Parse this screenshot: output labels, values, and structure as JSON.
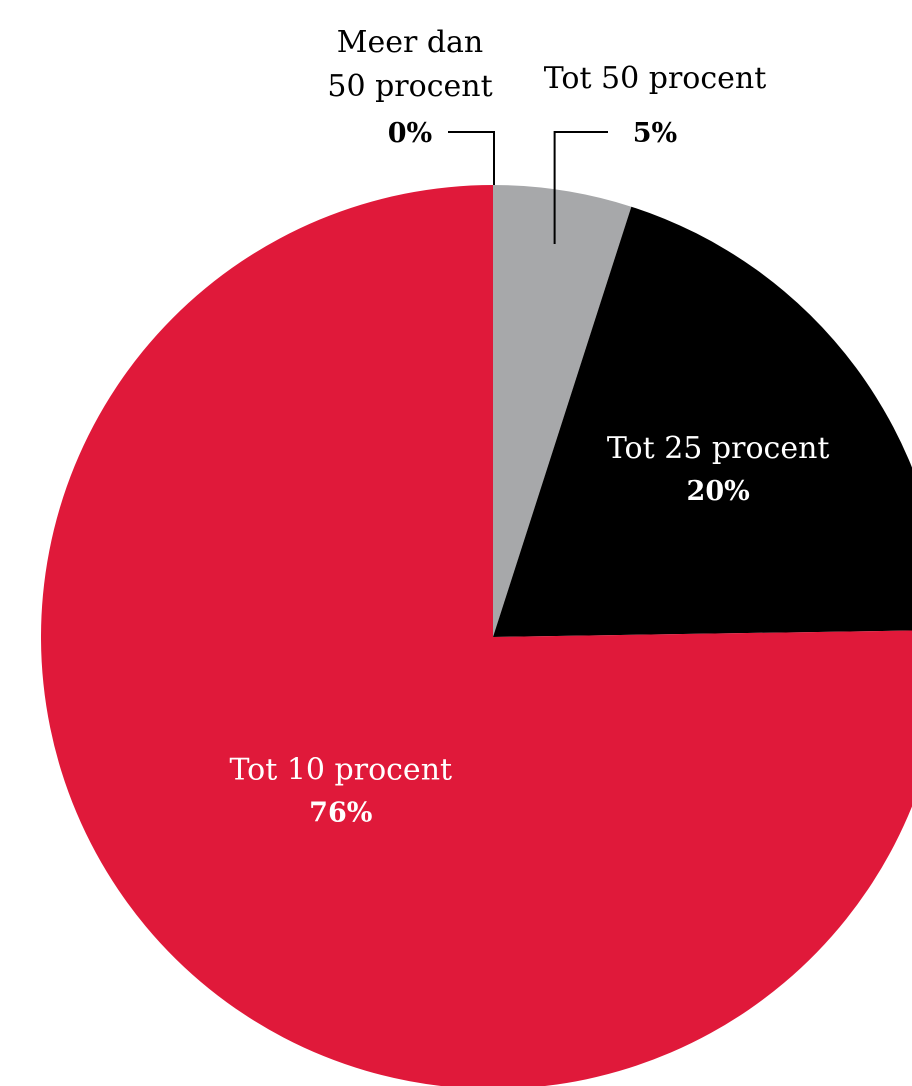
{
  "chart_data": {
    "type": "pie",
    "title": "",
    "start": "top",
    "direction": "clockwise",
    "slices": [
      {
        "label_lines": [
          "Meer dan",
          "50 procent"
        ],
        "pct_label": "0%",
        "value": 0,
        "color": "#000000",
        "label_color": "#000000",
        "label_placement": "outside-left"
      },
      {
        "label_lines": [
          "Tot 50 procent"
        ],
        "pct_label": "5%",
        "value": 5,
        "color": "#a7a8aa",
        "label_color": "#000000",
        "label_placement": "outside-right"
      },
      {
        "label_lines": [
          "Tot 25 procent"
        ],
        "pct_label": "20%",
        "value": 20,
        "color": "#000000",
        "label_color": "#ffffff",
        "label_placement": "inside"
      },
      {
        "label_lines": [
          "Tot 10 procent"
        ],
        "pct_label": "76%",
        "value": 76,
        "color": "#e0193a",
        "label_color": "#ffffff",
        "label_placement": "inside"
      }
    ]
  }
}
